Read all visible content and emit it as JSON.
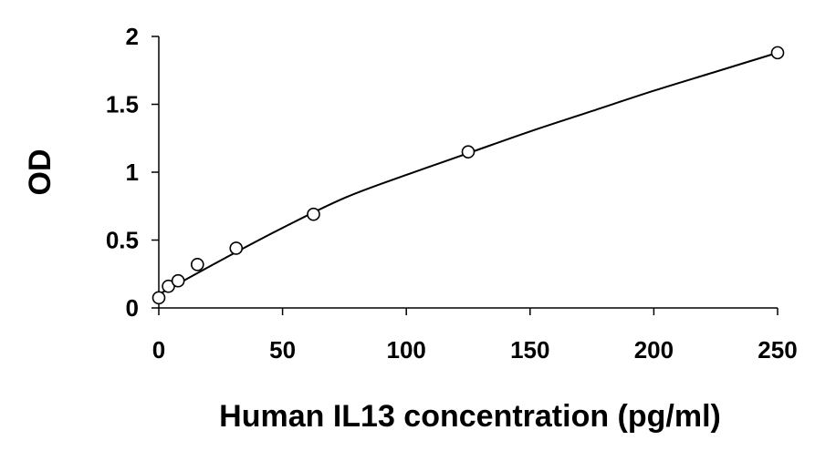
{
  "chart_data": {
    "type": "scatter",
    "title": "",
    "xlabel": "Human IL13 concentration (pg/ml)",
    "ylabel": "OD",
    "xlim": [
      0,
      250
    ],
    "ylim": [
      0,
      2
    ],
    "xticks": [
      0,
      50,
      100,
      150,
      200,
      250
    ],
    "yticks": [
      0,
      0.5,
      1,
      1.5,
      2
    ],
    "xtick_labels": [
      "0",
      "50",
      "100",
      "150",
      "200",
      "250"
    ],
    "ytick_labels": [
      "0",
      "0.5",
      "1",
      "1.5",
      "2"
    ],
    "grid": false,
    "legend": "none",
    "series": [
      {
        "marker": "open-circle",
        "x": [
          0,
          3.9,
          7.8,
          15.6,
          31.25,
          62.5,
          125,
          250
        ],
        "y": [
          0.075,
          0.16,
          0.2,
          0.32,
          0.44,
          0.69,
          1.15,
          1.88
        ]
      }
    ],
    "fit_curve": {
      "type": "polynomial",
      "x": [
        0,
        25,
        50,
        75,
        100,
        125,
        150,
        175,
        200,
        225,
        250
      ],
      "y": [
        0.1,
        0.35,
        0.59,
        0.81,
        0.98,
        1.14,
        1.3,
        1.45,
        1.6,
        1.74,
        1.88
      ]
    },
    "colors": {
      "marker_stroke": "#000000",
      "marker_fill": "#ffffff",
      "line": "#000000",
      "axis": "#000000"
    }
  }
}
